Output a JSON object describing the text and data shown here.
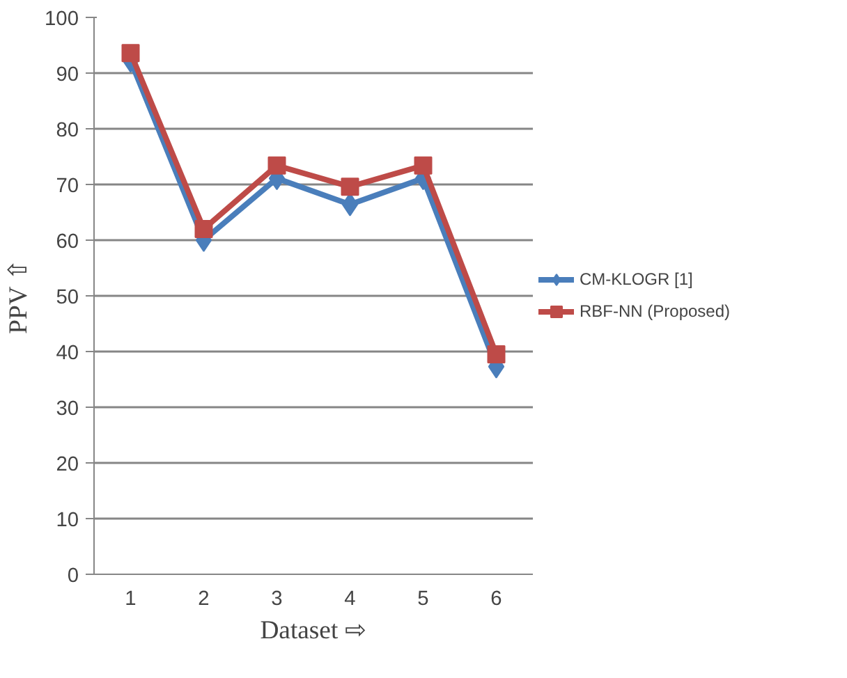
{
  "chart_data": {
    "type": "line",
    "xlabel": "Dataset ⇨",
    "ylabel": "PPV ⇧",
    "categories": [
      "1",
      "2",
      "3",
      "4",
      "5",
      "6"
    ],
    "series": [
      {
        "name": "CM-KLOGR [1]",
        "color": "#4a7ebb",
        "marker": "diamond",
        "values": [
          92.2,
          60.0,
          71.1,
          66.4,
          71.1,
          37.3
        ]
      },
      {
        "name": "RBF-NN (Proposed)",
        "color": "#be4b48",
        "marker": "square",
        "values": [
          93.6,
          62.0,
          73.4,
          69.6,
          73.4,
          39.5
        ]
      }
    ],
    "ylim": [
      0,
      100
    ],
    "yticks": [
      0,
      10,
      20,
      30,
      40,
      50,
      60,
      70,
      80,
      90,
      100
    ],
    "grid": "y",
    "legend": "right"
  }
}
